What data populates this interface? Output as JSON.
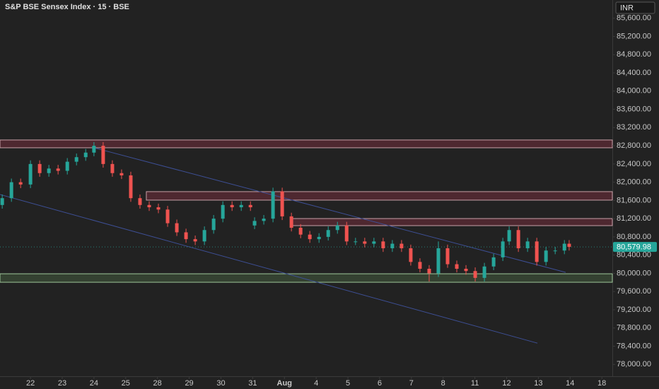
{
  "chart_data": {
    "type": "candlestick",
    "title": "S&P BSE Sensex Index · 15 · BSE",
    "currency": "INR",
    "up_color": "#26a69a",
    "down_color": "#ef5350",
    "xlim": [
      -0.96,
      18.33
    ],
    "ylim": [
      77740,
      86000
    ],
    "xticks": [
      {
        "value": 0,
        "label": "22"
      },
      {
        "value": 1,
        "label": "23"
      },
      {
        "value": 2,
        "label": "24"
      },
      {
        "value": 3,
        "label": "25"
      },
      {
        "value": 4,
        "label": "28"
      },
      {
        "value": 5,
        "label": "29"
      },
      {
        "value": 6,
        "label": "30"
      },
      {
        "value": 7,
        "label": "31"
      },
      {
        "value": 8,
        "label": "Aug"
      },
      {
        "value": 9,
        "label": "4"
      },
      {
        "value": 10,
        "label": "5"
      },
      {
        "value": 11,
        "label": "6"
      },
      {
        "value": 12,
        "label": "7"
      },
      {
        "value": 13,
        "label": "8"
      },
      {
        "value": 14,
        "label": "11"
      },
      {
        "value": 15,
        "label": "12"
      },
      {
        "value": 16,
        "label": "13"
      },
      {
        "value": 17,
        "label": "14"
      },
      {
        "value": 18,
        "label": "18"
      }
    ],
    "yticks": [
      {
        "value": 78000,
        "label": "78,000.00"
      },
      {
        "value": 78400,
        "label": "78,400.00"
      },
      {
        "value": 78800,
        "label": "78,800.00"
      },
      {
        "value": 79200,
        "label": "79,200.00"
      },
      {
        "value": 79600,
        "label": "79,600.00"
      },
      {
        "value": 80000,
        "label": "80,000.00"
      },
      {
        "value": 80400,
        "label": "80,400.00"
      },
      {
        "value": 80800,
        "label": "80,800.00"
      },
      {
        "value": 81200,
        "label": "81,200.00"
      },
      {
        "value": 81600,
        "label": "81,600.00"
      },
      {
        "value": 82000,
        "label": "82,000.00"
      },
      {
        "value": 82400,
        "label": "82,400.00"
      },
      {
        "value": 82800,
        "label": "82,800.00"
      },
      {
        "value": 83200,
        "label": "83,200.00"
      },
      {
        "value": 83600,
        "label": "83,600.00"
      },
      {
        "value": 84000,
        "label": "84,000.00"
      },
      {
        "value": 84400,
        "label": "84,400.00"
      },
      {
        "value": 84800,
        "label": "84,800.00"
      },
      {
        "value": 85200,
        "label": "85,200.00"
      },
      {
        "value": 85600,
        "label": "85,600.00"
      }
    ],
    "last_price": {
      "value": 80579.98,
      "label": "80,579.98",
      "color": "#26a69a"
    },
    "candles": {
      "x": [
        -0.89,
        -0.6,
        -0.31,
        0,
        0.29,
        0.58,
        0.87,
        1.16,
        1.45,
        1.74,
        2,
        2.29,
        2.58,
        2.87,
        3.16,
        3.45,
        3.74,
        4.03,
        4.32,
        4.61,
        4.9,
        5.19,
        5.48,
        5.77,
        6.06,
        6.35,
        6.64,
        6.93,
        7.06,
        7.35,
        7.64,
        7.93,
        8.22,
        8.51,
        8.8,
        9.09,
        9.38,
        9.67,
        9.96,
        10.24,
        10.53,
        10.82,
        11.11,
        11.4,
        11.69,
        11.98,
        12.27,
        12.56,
        12.85,
        13.14,
        13.43,
        13.72,
        14.01,
        14.3,
        14.59,
        14.88,
        15.08,
        15.37,
        15.66,
        15.95,
        16.24,
        16.53,
        16.82,
        16.97
      ],
      "open": [
        81500,
        81650,
        82000,
        81950,
        82400,
        82200,
        82300,
        82250,
        82450,
        82550,
        82650,
        82800,
        82400,
        82200,
        82150,
        81650,
        81500,
        81450,
        81400,
        81100,
        80900,
        80750,
        80700,
        80950,
        81200,
        81500,
        81450,
        81500,
        81050,
        81150,
        81200,
        81800,
        81250,
        81000,
        80850,
        80750,
        80800,
        80950,
        81050,
        80700,
        80700,
        80650,
        80700,
        80550,
        80650,
        80550,
        80250,
        80100,
        80000,
        80550,
        80200,
        80100,
        80050,
        79900,
        80150,
        80350,
        80700,
        80950,
        80550,
        80700,
        80250,
        80500,
        80500,
        80650
      ],
      "high": [
        81730,
        82080,
        82080,
        82480,
        82480,
        82380,
        82380,
        82530,
        82630,
        82730,
        82880,
        82880,
        82480,
        82280,
        82230,
        81730,
        81580,
        81530,
        81480,
        81180,
        80980,
        80830,
        81030,
        81280,
        81580,
        81580,
        81580,
        81580,
        81230,
        81280,
        81880,
        81880,
        81330,
        81080,
        80930,
        80880,
        81030,
        81130,
        81130,
        80780,
        80780,
        80780,
        80780,
        80730,
        80730,
        80630,
        80330,
        80180,
        80700,
        80630,
        80280,
        80180,
        80130,
        80230,
        80430,
        80780,
        81030,
        81030,
        80780,
        80780,
        80580,
        80580,
        80730,
        80730
      ],
      "low": [
        81420,
        81570,
        81870,
        81870,
        82120,
        82120,
        82170,
        82170,
        82370,
        82470,
        82570,
        82320,
        82120,
        82070,
        81570,
        81420,
        81370,
        81320,
        81020,
        80820,
        80670,
        80620,
        80620,
        80870,
        81120,
        81370,
        81370,
        81370,
        80970,
        81070,
        81120,
        81170,
        80920,
        80770,
        80670,
        80670,
        80720,
        80870,
        80620,
        80620,
        80570,
        80570,
        80470,
        80470,
        80470,
        80170,
        80020,
        79820,
        79920,
        80120,
        80020,
        79970,
        79820,
        79820,
        80070,
        80270,
        80620,
        80470,
        80470,
        80170,
        80170,
        80420,
        80420,
        80500
      ],
      "close": [
        81650,
        82000,
        81950,
        82400,
        82200,
        82300,
        82250,
        82450,
        82550,
        82650,
        82800,
        82400,
        82200,
        82150,
        81650,
        81500,
        81450,
        81400,
        81100,
        80900,
        80750,
        80700,
        80950,
        81200,
        81500,
        81450,
        81500,
        81450,
        81150,
        81200,
        81800,
        81250,
        81000,
        80850,
        80750,
        80800,
        80950,
        81050,
        80700,
        80700,
        80650,
        80700,
        80550,
        80650,
        80550,
        80250,
        80100,
        80000,
        80550,
        80200,
        80100,
        80050,
        79900,
        80150,
        80350,
        80700,
        80950,
        80550,
        80700,
        80250,
        80500,
        80500,
        80650,
        80579.98
      ]
    },
    "zones": [
      {
        "x_start": -0.96,
        "ylim": [
          82756,
          82927
        ],
        "color": "#5a2a35",
        "border": "#c9a0a8"
      },
      {
        "x_start": 3.65,
        "ylim": [
          81607,
          81793
        ],
        "color": "#5a2a35",
        "border": "#c9a0a8"
      },
      {
        "x_start": 8.26,
        "ylim": [
          81047,
          81202
        ],
        "color": "#5a2a35",
        "border": "#c9a0a8"
      },
      {
        "x_start": -0.96,
        "ylim": [
          79804,
          79990
        ],
        "color": "#394a36",
        "border": "#9fc79a"
      }
    ],
    "trend_lines": [
      {
        "x": [
          2,
          16.86
        ],
        "y": [
          82756,
          80021
        ],
        "color": "#3d4f95"
      },
      {
        "x": [
          -0.96,
          15.97
        ],
        "y": [
          81731,
          78467
        ],
        "color": "#3d4f95"
      }
    ]
  }
}
